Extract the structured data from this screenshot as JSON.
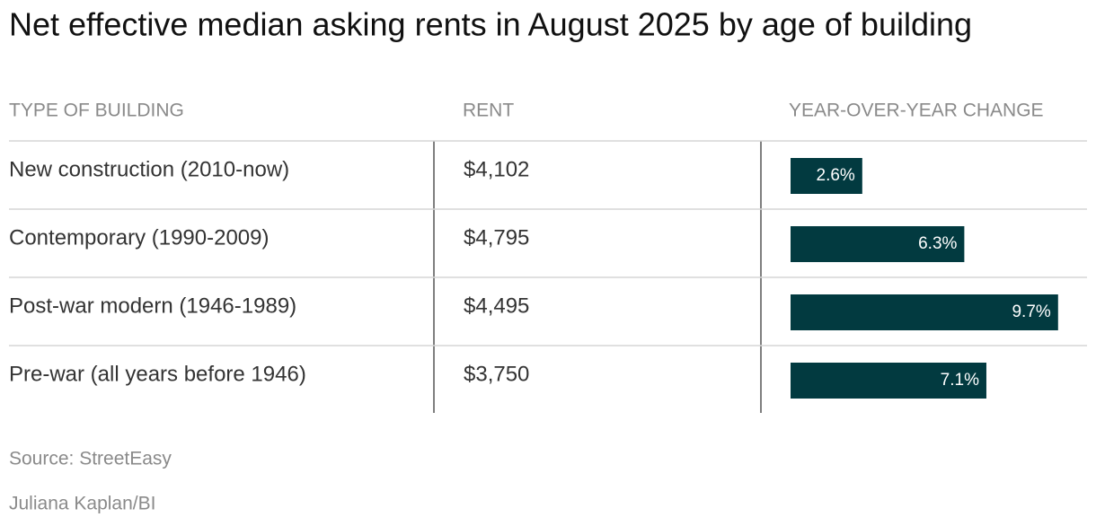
{
  "title": "Net effective median asking rents in August 2025 by age of building",
  "table": {
    "headers": [
      "TYPE OF BUILDING",
      "RENT",
      "YEAR-OVER-YEAR CHANGE"
    ],
    "bar_color": "#023a40",
    "rows": [
      {
        "type": "New construction (2010-now)",
        "rent": "$4,102",
        "change": 2.6,
        "change_label": "2.6%"
      },
      {
        "type": "Contemporary (1990-2009)",
        "rent": "$4,795",
        "change": 6.3,
        "change_label": "6.3%"
      },
      {
        "type": "Post-war modern (1946-1989)",
        "rent": "$4,495",
        "change": 9.7,
        "change_label": "9.7%"
      },
      {
        "type": "Pre-war (all years before 1946)",
        "rent": "$3,750",
        "change": 7.1,
        "change_label": "7.1%"
      }
    ]
  },
  "source": "Source: StreetEasy",
  "credit": "Juliana Kaplan/BI"
}
